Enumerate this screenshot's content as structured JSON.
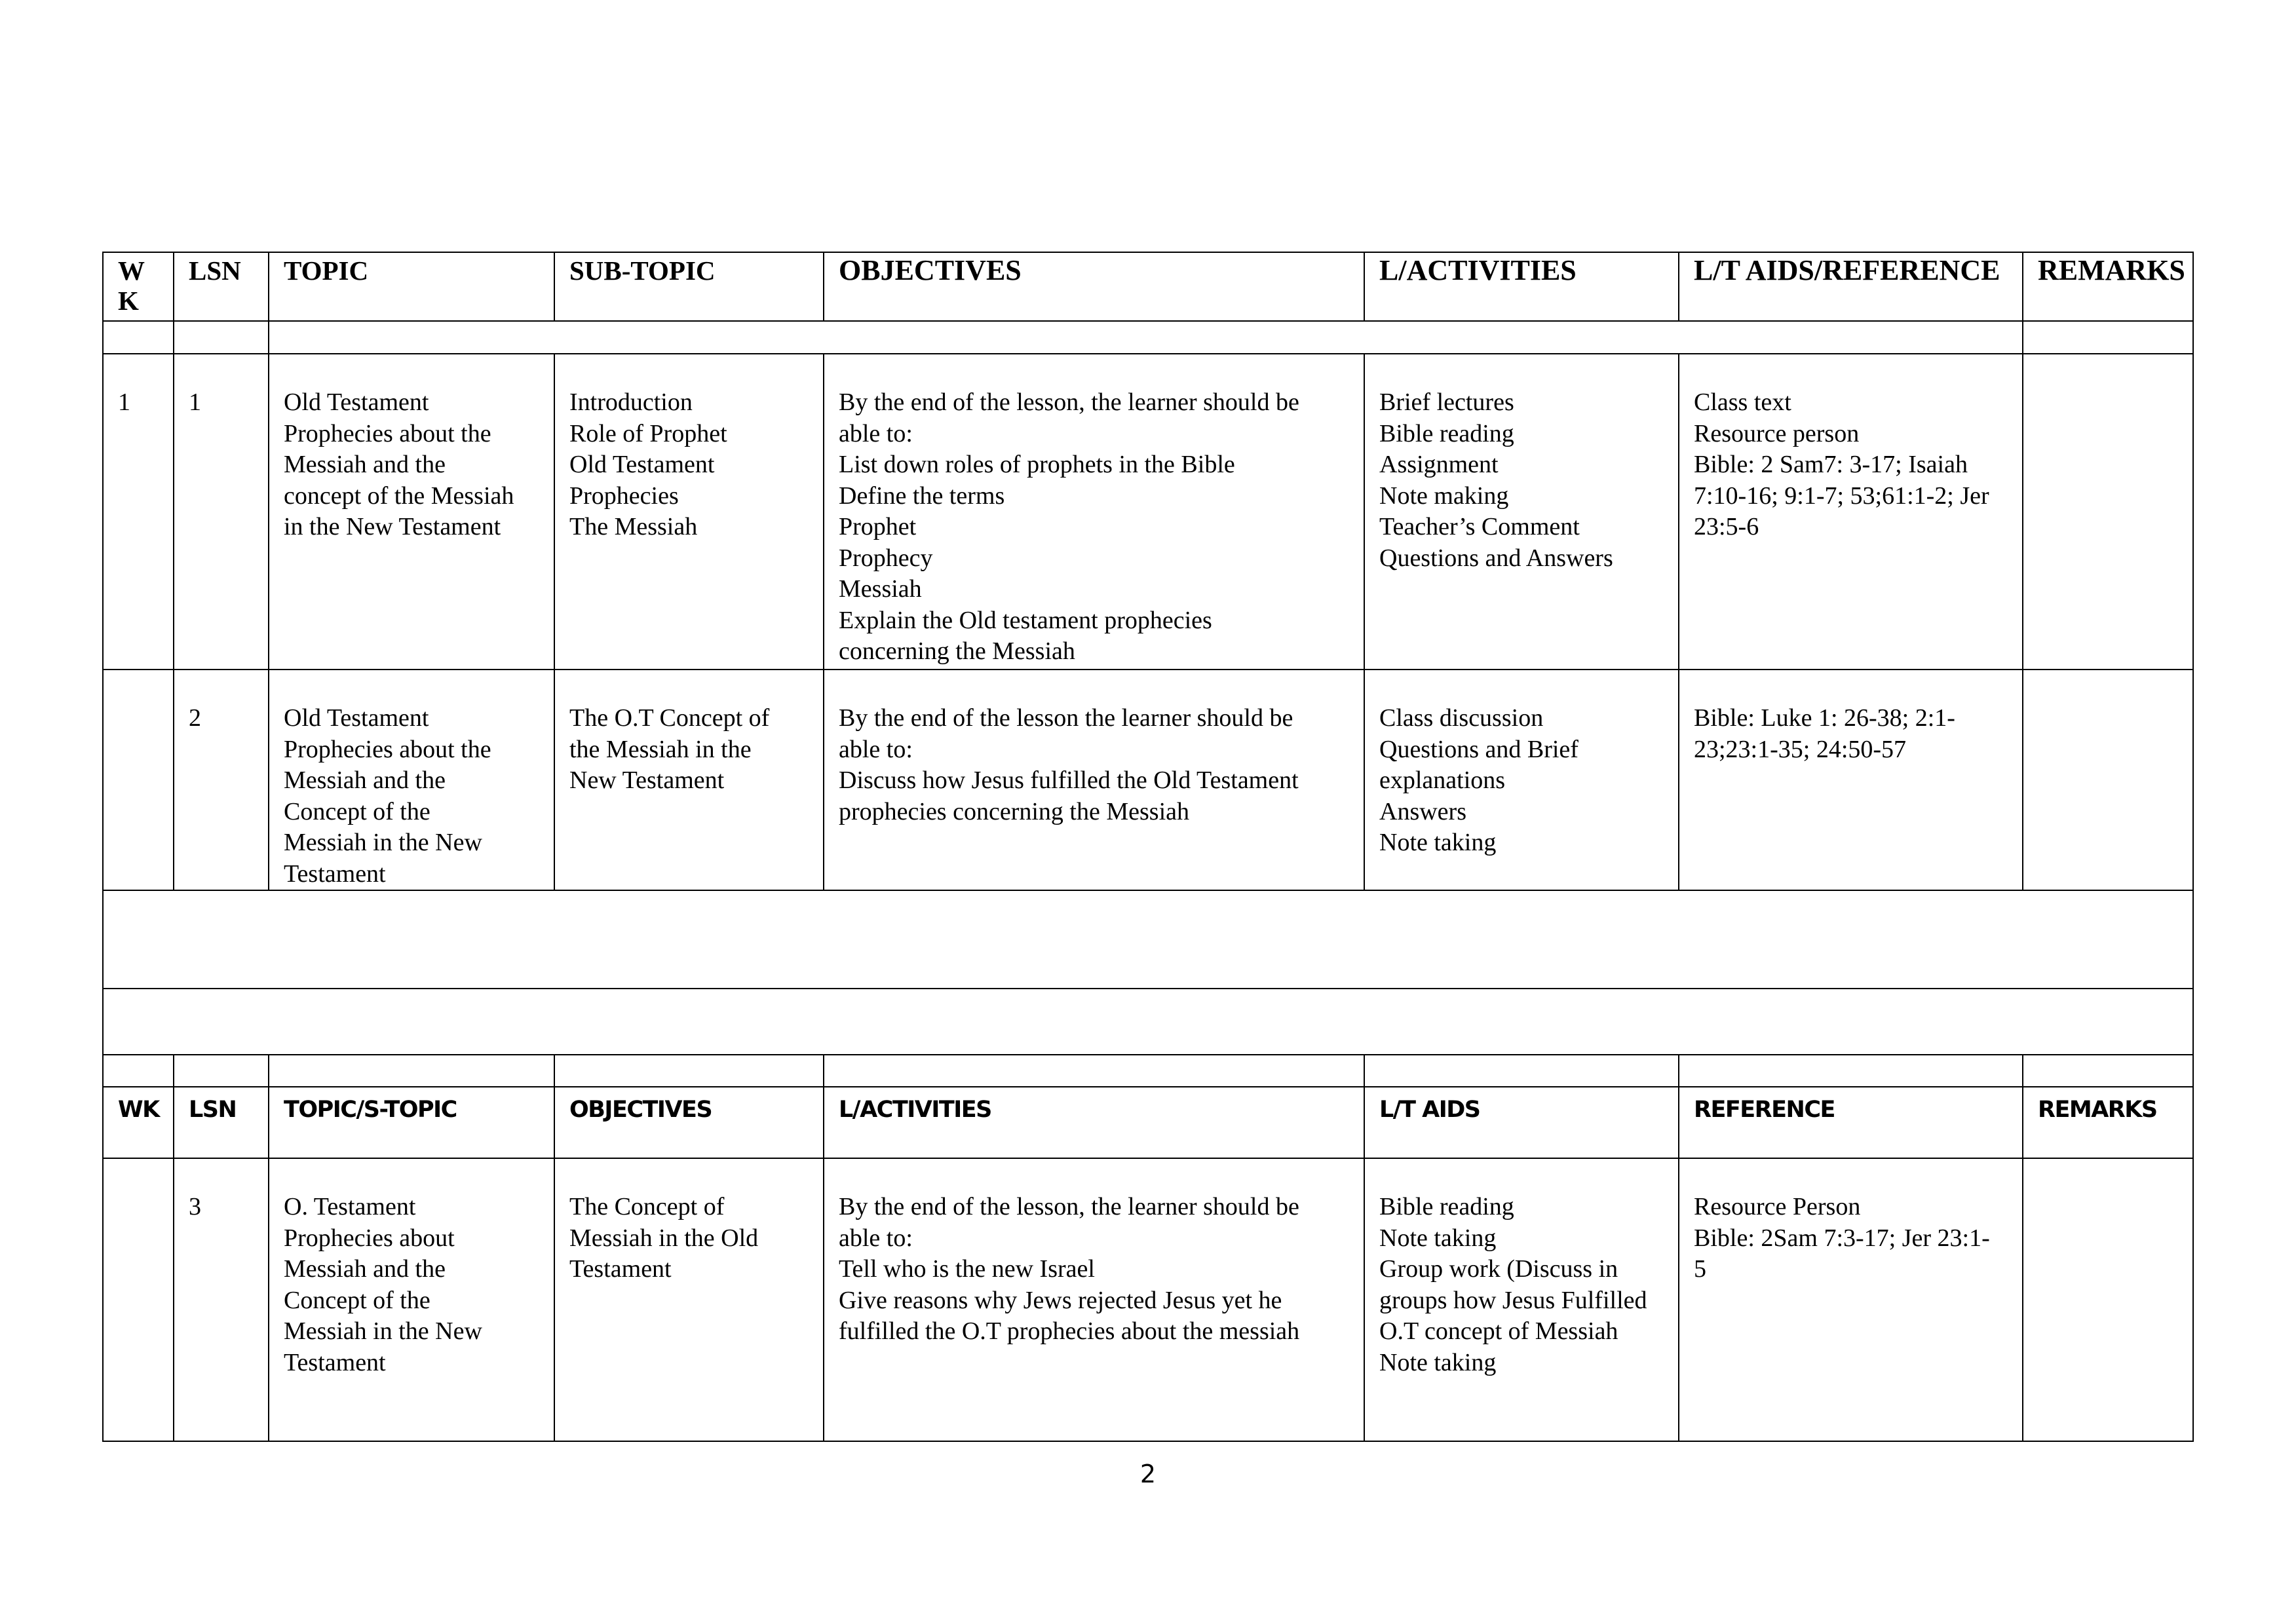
{
  "header1": [
    "W K",
    "LSN",
    "TOPIC",
    "SUB-TOPIC",
    "OBJECTIVES",
    "L/ACTIVITIES",
    "L/T AIDS/REFERENCE",
    "REMARKS"
  ],
  "rows1": [
    {
      "wk": "1",
      "lsn": "1",
      "topic": [
        "Old Testament",
        "Prophecies about the",
        "Messiah and the",
        "concept of the Messiah",
        "in the New Testament"
      ],
      "subtopic": [
        "Introduction",
        "Role of Prophet",
        "Old Testament",
        "Prophecies",
        "The Messiah"
      ],
      "objectives": [
        "By the end of the lesson, the learner should be",
        "able to:",
        "List down roles of prophets in the Bible",
        "Define the terms",
        "Prophet",
        "Prophecy",
        "Messiah",
        "Explain the Old testament prophecies",
        "concerning the Messiah"
      ],
      "activities": [
        "Brief lectures",
        "Bible reading",
        "Assignment",
        "Note making",
        "Teacher’s Comment",
        "Questions and Answers"
      ],
      "aids": [
        "Class text",
        "Resource person",
        "Bible: 2 Sam7: 3-17; Isaiah",
        "7:10-16; 9:1-7; 53;61:1-2; Jer",
        "23:5-6"
      ],
      "remarks": []
    },
    {
      "wk": "",
      "lsn": "2",
      "topic": [
        "Old Testament",
        "Prophecies about the",
        "Messiah and the",
        "Concept of the",
        "Messiah in the New",
        "Testament"
      ],
      "subtopic": [
        "The O.T Concept of",
        "the Messiah in the",
        "New Testament"
      ],
      "objectives": [
        "By the end of the lesson the learner should be",
        "able to:",
        "Discuss how Jesus fulfilled the Old Testament",
        "prophecies concerning the Messiah"
      ],
      "activities": [
        "Class discussion",
        "Questions and Brief",
        "explanations",
        "Answers",
        "Note taking"
      ],
      "aids": [
        "Bible: Luke 1: 26-38; 2:1-",
        "23;23:1-35; 24:50-57"
      ],
      "remarks": []
    }
  ],
  "header2": [
    "WK",
    "LSN",
    "TOPIC/S-TOPIC",
    "OBJECTIVES",
    "L/ACTIVITIES",
    "L/T AIDS",
    "REFERENCE",
    "REMARKS"
  ],
  "rows2": [
    {
      "wk": "",
      "lsn": "3",
      "topic": [
        "O. Testament",
        "Prophecies about",
        "Messiah and the",
        "Concept of the",
        "Messiah in the New",
        "Testament"
      ],
      "subtopic": [
        "The Concept of",
        "Messiah in the Old",
        "Testament"
      ],
      "objectives": [
        "By the end of the lesson, the learner should be",
        "able to:",
        "Tell who is the new Israel",
        "Give reasons why Jews rejected Jesus yet he",
        "fulfilled the O.T prophecies about the messiah"
      ],
      "activities": [
        "Bible reading",
        "Note taking",
        "Group work (Discuss in",
        "groups how Jesus Fulfilled",
        "O.T concept of Messiah",
        "Note taking"
      ],
      "aids": [
        "Resource Person",
        "Bible: 2Sam 7:3-17; Jer 23:1-",
        "5"
      ],
      "remarks": []
    }
  ],
  "page_number": "2"
}
